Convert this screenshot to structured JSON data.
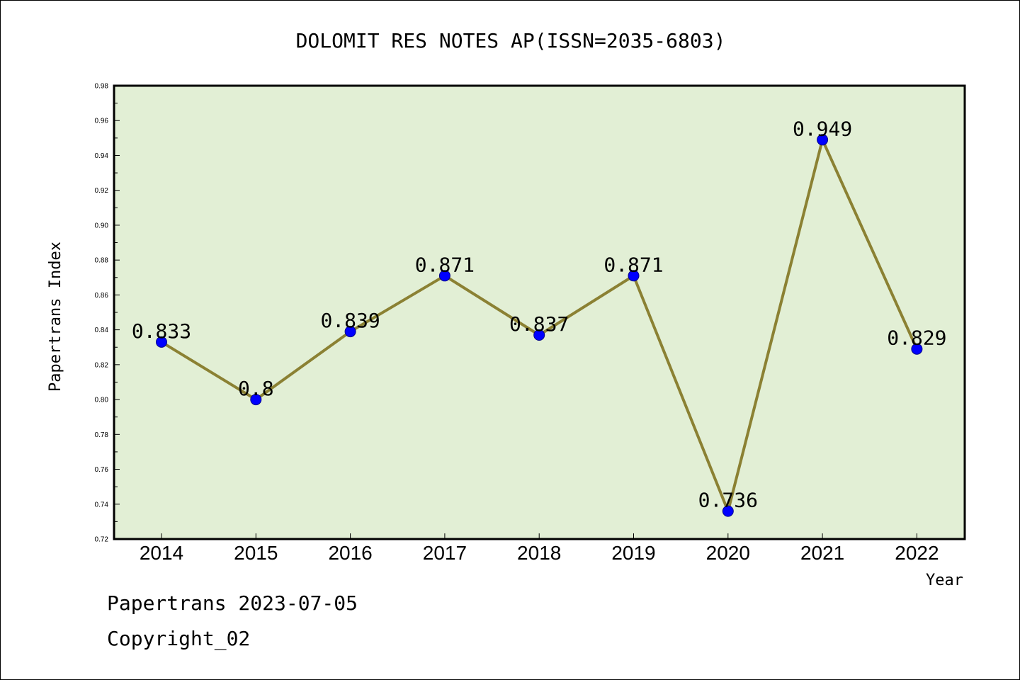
{
  "chart_data": {
    "type": "line",
    "title": "DOLOMIT RES NOTES AP(ISSN=2035-6803)",
    "xlabel": "Year",
    "ylabel": "Papertrans Index",
    "categories": [
      "2014",
      "2015",
      "2016",
      "2017",
      "2018",
      "2019",
      "2020",
      "2021",
      "2022"
    ],
    "series": [
      {
        "values": [
          0.833,
          0.8,
          0.839,
          0.871,
          0.837,
          0.871,
          0.736,
          0.949,
          0.829
        ],
        "labels": [
          "0.833",
          "0.8",
          "0.839",
          "0.871",
          "0.837",
          "0.871",
          "0.736",
          "0.949",
          "0.829"
        ]
      }
    ],
    "ylim": [
      0.72,
      0.98
    ],
    "yticks": [
      "0.72",
      "0.74",
      "0.76",
      "0.78",
      "0.80",
      "0.82",
      "0.84",
      "0.86",
      "0.88",
      "0.90",
      "0.92",
      "0.94",
      "0.96",
      "0.98"
    ],
    "grid": false,
    "colors": {
      "plot_background": "#e2efd5",
      "line": "#8b8133",
      "marker": "#0000ff"
    }
  },
  "footer": {
    "line1": "Papertrans 2023-07-05",
    "line2": "Copyright_02"
  }
}
